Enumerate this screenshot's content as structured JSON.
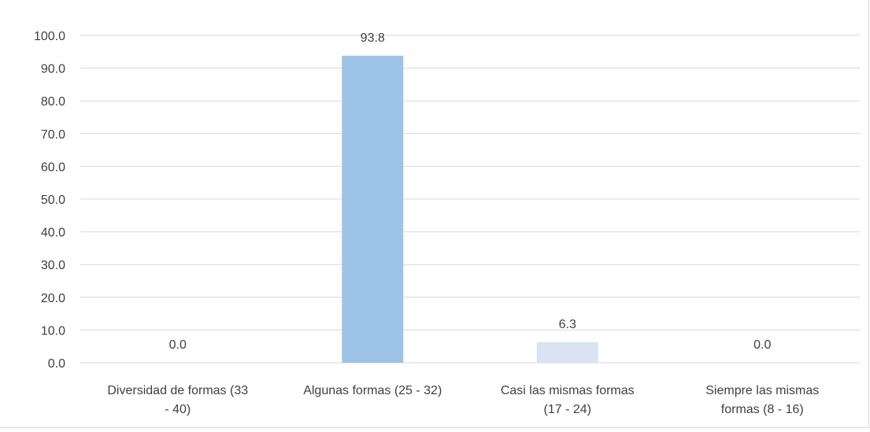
{
  "chart_data": {
    "type": "bar",
    "title": "",
    "xlabel": "",
    "ylabel": "",
    "categories": [
      [
        "Diversidad de formas (33",
        "- 40)"
      ],
      [
        "Algunas formas (25 - 32)"
      ],
      [
        "Casi las mismas formas",
        "(17 - 24)"
      ],
      [
        "Siempre las mismas",
        "formas (8 - 16)"
      ]
    ],
    "values": [
      0.0,
      93.8,
      6.3,
      0.0
    ],
    "data_labels": [
      "0.0",
      "93.8",
      "6.3",
      "0.0"
    ],
    "bar_colors": [
      "#9dc3e6",
      "#9dc3e6",
      "#dae3f3",
      "#9dc3e6"
    ],
    "ylim": [
      0,
      100
    ],
    "yticks": [
      0,
      10,
      20,
      30,
      40,
      50,
      60,
      70,
      80,
      90,
      100
    ],
    "ytick_labels": [
      "0.0",
      "10.0",
      "20.0",
      "30.0",
      "40.0",
      "50.0",
      "60.0",
      "70.0",
      "80.0",
      "90.0",
      "100.0"
    ],
    "grid": true,
    "legend": "none",
    "gridline_color": "#d9d9d9"
  }
}
